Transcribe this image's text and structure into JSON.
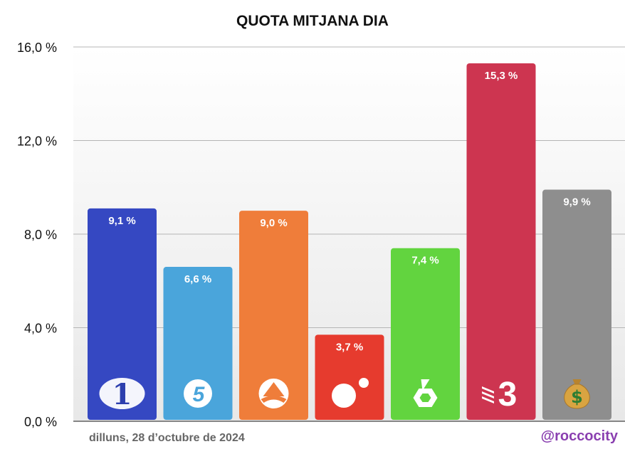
{
  "chart_data": {
    "type": "bar",
    "title": "QUOTA MITJANA DIA",
    "xlabel": "",
    "ylabel": "",
    "ylim": [
      0,
      16
    ],
    "y_ticks": [
      {
        "value": 0,
        "label": "0,0 %"
      },
      {
        "value": 4,
        "label": "4,0 %"
      },
      {
        "value": 8,
        "label": "8,0 %"
      },
      {
        "value": 12,
        "label": "12,0 %"
      },
      {
        "value": 16,
        "label": "16,0 %"
      }
    ],
    "grid": true,
    "categories": [
      "La 1",
      "Telecinco",
      "Antena 3",
      "Cuatro",
      "laSexta",
      "TV3",
      "Altres"
    ],
    "values": [
      9.1,
      6.6,
      9.0,
      3.7,
      7.4,
      15.3,
      9.9
    ],
    "data_labels": [
      "9,1 %",
      "6,6 %",
      "9,0 %",
      "3,7 %",
      "7,4 %",
      "15,3 %",
      "9,9 %"
    ],
    "colors": [
      "#3548c2",
      "#4aa5db",
      "#ef7d3a",
      "#e63b2e",
      "#62d43f",
      "#cd3550",
      "#8e8e8e"
    ],
    "logos": [
      "la1-logo",
      "telecinco-logo",
      "antena3-logo",
      "cuatro-logo",
      "lasexta-logo",
      "tv3-logo",
      "money-bag-icon"
    ]
  },
  "footer": {
    "date": "dilluns, 28 d’octubre de 2024",
    "handle": "@roccocity"
  }
}
